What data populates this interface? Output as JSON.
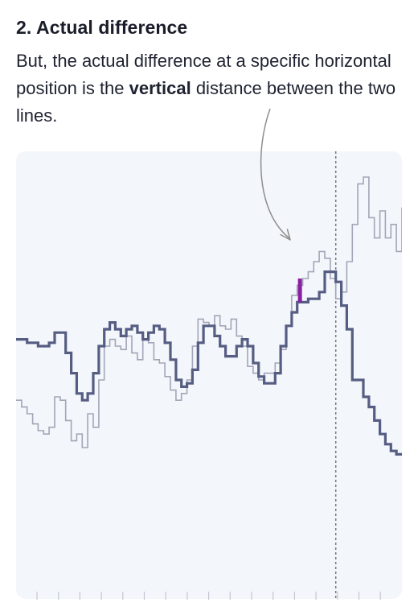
{
  "section": {
    "heading": "2. Actual difference",
    "paragraph": {
      "before": "But, the actual difference at a specific horizontal position is the ",
      "emphasis": "vertical",
      "after": " distance between the two lines."
    }
  },
  "colors": {
    "panel_background": "#f3f6fa",
    "series_dark": "#565d82",
    "series_light": "#a3a5b8",
    "difference_marker": "#8b1fa3",
    "annotation_arrow": "#8e8e8e",
    "cursor_line": "#787878",
    "tick_mark": "#c4c7d0"
  },
  "chart_data": {
    "type": "line",
    "series": [
      {
        "style": "step",
        "emphasis": "bold",
        "values": [
          0.52,
          0.52,
          0.51,
          0.51,
          0.5,
          0.5,
          0.51,
          0.54,
          0.54,
          0.48,
          0.42,
          0.36,
          0.34,
          0.36,
          0.42,
          0.5,
          0.55,
          0.57,
          0.55,
          0.53,
          0.55,
          0.56,
          0.54,
          0.52,
          0.54,
          0.56,
          0.55,
          0.51,
          0.46,
          0.4,
          0.38,
          0.39,
          0.43,
          0.51,
          0.56,
          0.56,
          0.53,
          0.5,
          0.47,
          0.47,
          0.5,
          0.52,
          0.5,
          0.45,
          0.41,
          0.39,
          0.39,
          0.42,
          0.5,
          0.56,
          0.6,
          0.63,
          0.63,
          0.64,
          0.64,
          0.66,
          0.72,
          0.72,
          0.69,
          0.62,
          0.55,
          0.4,
          0.4,
          0.35,
          0.32,
          0.28,
          0.24,
          0.21,
          0.19,
          0.18,
          0.18
        ]
      },
      {
        "style": "step",
        "emphasis": "faint",
        "values": [
          0.34,
          0.32,
          0.3,
          0.27,
          0.25,
          0.24,
          0.26,
          0.35,
          0.34,
          0.28,
          0.22,
          0.24,
          0.2,
          0.3,
          0.26,
          0.4,
          0.5,
          0.52,
          0.5,
          0.49,
          0.53,
          0.48,
          0.46,
          0.52,
          0.51,
          0.46,
          0.45,
          0.41,
          0.37,
          0.34,
          0.36,
          0.4,
          0.5,
          0.58,
          0.57,
          0.56,
          0.59,
          0.56,
          0.55,
          0.58,
          0.53,
          0.5,
          0.44,
          0.42,
          0.4,
          0.42,
          0.42,
          0.45,
          0.49,
          0.56,
          0.65,
          0.68,
          0.7,
          0.72,
          0.75,
          0.78,
          0.76,
          0.7,
          0.64,
          0.66,
          0.75,
          0.86,
          0.98,
          1.0,
          0.88,
          0.82,
          0.9,
          0.82,
          0.86,
          0.78,
          0.91
        ]
      }
    ],
    "difference_marker": {
      "index": 52,
      "from_series": 0,
      "to_series": 1
    },
    "cursor_index": 58,
    "xtick_count": 17,
    "ylim": [
      0,
      1
    ]
  }
}
